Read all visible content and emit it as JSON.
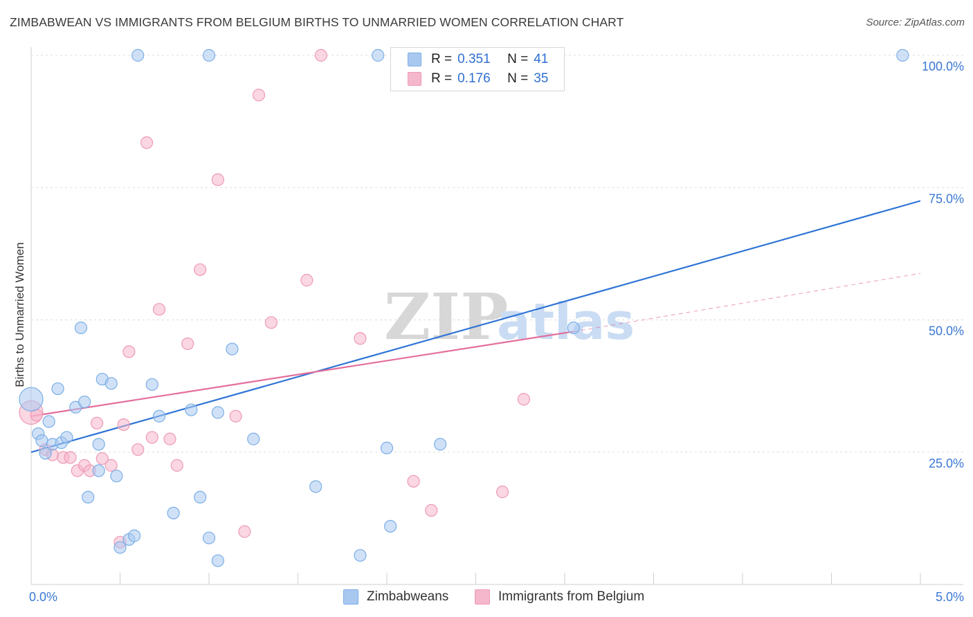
{
  "header": {
    "title": "ZIMBABWEAN VS IMMIGRANTS FROM BELGIUM BIRTHS TO UNMARRIED WOMEN CORRELATION CHART",
    "source": "Source: ZipAtlas.com"
  },
  "legend": {
    "rows": [
      {
        "r_label": "R =",
        "r_value": "0.351",
        "n_label": "N =",
        "n_value": "41"
      },
      {
        "r_label": "R =",
        "r_value": "0.176",
        "n_label": "N =",
        "n_value": "35"
      }
    ]
  },
  "bottom_legend": {
    "zimbabweans": "Zimbabweans",
    "belgium": "Immigrants from Belgium"
  },
  "colors": {
    "blue_fill": "#a9c8f0",
    "blue_stroke": "#7aaee6",
    "blue_line": "#2e74d6",
    "pink_fill": "#f5b7cb",
    "pink_stroke": "#ee9ab5",
    "pink_line": "#e46d9b",
    "axis_text": "#3a78d4"
  },
  "chart_data": {
    "type": "scatter",
    "title": "ZIMBABWEAN VS IMMIGRANTS FROM BELGIUM BIRTHS TO UNMARRIED WOMEN CORRELATION CHART",
    "xlabel": "",
    "ylabel": "Births to Unmarried Women",
    "xlim": [
      0,
      5
    ],
    "ylim": [
      0,
      100
    ],
    "x_tick_labels": [
      "0.0%",
      "5.0%"
    ],
    "y_tick_labels": [
      "25.0%",
      "50.0%",
      "75.0%",
      "100.0%"
    ],
    "y_ticks": [
      25,
      50,
      75,
      100
    ],
    "watermark": "ZIPatlas",
    "series": [
      {
        "name": "Zimbabweans",
        "r": 0.351,
        "n": 41,
        "trend": {
          "x0": 0.0,
          "y0": 25.0,
          "x1": 5.0,
          "y1": 72.5
        },
        "points": [
          [
            0.0,
            35.0,
            "big"
          ],
          [
            0.04,
            28.5
          ],
          [
            0.06,
            27.2
          ],
          [
            0.1,
            30.8
          ],
          [
            0.12,
            26.5
          ],
          [
            0.08,
            24.8
          ],
          [
            0.15,
            37.0
          ],
          [
            0.17,
            26.8
          ],
          [
            0.2,
            27.8
          ],
          [
            0.25,
            33.5
          ],
          [
            0.28,
            48.5
          ],
          [
            0.3,
            34.5
          ],
          [
            0.32,
            16.5
          ],
          [
            0.38,
            21.5
          ],
          [
            0.4,
            38.8
          ],
          [
            0.38,
            26.5
          ],
          [
            0.45,
            38.0
          ],
          [
            0.48,
            20.5
          ],
          [
            0.5,
            7.0
          ],
          [
            0.55,
            8.5
          ],
          [
            0.58,
            9.2
          ],
          [
            0.6,
            100.0
          ],
          [
            0.68,
            37.8
          ],
          [
            0.72,
            31.8
          ],
          [
            0.8,
            13.5
          ],
          [
            0.9,
            33.0
          ],
          [
            0.95,
            16.5
          ],
          [
            1.0,
            8.8
          ],
          [
            1.05,
            4.5
          ],
          [
            1.0,
            100.0
          ],
          [
            1.05,
            32.5
          ],
          [
            1.13,
            44.5
          ],
          [
            1.25,
            27.5
          ],
          [
            1.6,
            18.5
          ],
          [
            1.85,
            5.5
          ],
          [
            1.95,
            100.0
          ],
          [
            2.0,
            25.8
          ],
          [
            2.02,
            11.0
          ],
          [
            2.3,
            26.5
          ],
          [
            3.05,
            48.5
          ],
          [
            4.9,
            100.0
          ]
        ]
      },
      {
        "name": "Immigrants from Belgium",
        "r": 0.176,
        "n": 35,
        "trend": {
          "x0": 0.0,
          "y0": 31.8,
          "x1": 3.05,
          "y1": 47.8
        },
        "trend_dashed": {
          "x0": 3.05,
          "y0": 47.8,
          "x1": 5.0,
          "y1": 58.8
        },
        "points": [
          [
            0.0,
            32.5,
            "big"
          ],
          [
            0.08,
            25.5
          ],
          [
            0.12,
            24.5
          ],
          [
            0.18,
            24.0
          ],
          [
            0.22,
            24.0
          ],
          [
            0.26,
            21.5
          ],
          [
            0.3,
            22.5
          ],
          [
            0.33,
            21.5
          ],
          [
            0.37,
            30.5
          ],
          [
            0.4,
            23.8
          ],
          [
            0.45,
            22.5
          ],
          [
            0.5,
            8.0
          ],
          [
            0.52,
            30.2
          ],
          [
            0.55,
            44.0
          ],
          [
            0.6,
            25.5
          ],
          [
            0.65,
            83.5
          ],
          [
            0.68,
            27.8
          ],
          [
            0.72,
            52.0
          ],
          [
            0.78,
            27.5
          ],
          [
            0.82,
            22.5
          ],
          [
            0.88,
            45.5
          ],
          [
            0.95,
            59.5
          ],
          [
            1.05,
            76.5
          ],
          [
            1.15,
            31.8
          ],
          [
            1.2,
            10.0
          ],
          [
            1.28,
            92.5
          ],
          [
            1.35,
            49.5
          ],
          [
            1.55,
            57.5
          ],
          [
            1.63,
            100.0
          ],
          [
            1.85,
            46.5
          ],
          [
            2.15,
            19.5
          ],
          [
            2.25,
            14.0
          ],
          [
            2.65,
            17.5
          ],
          [
            2.77,
            35.0
          ],
          [
            0.03,
            32.0
          ]
        ]
      }
    ]
  }
}
